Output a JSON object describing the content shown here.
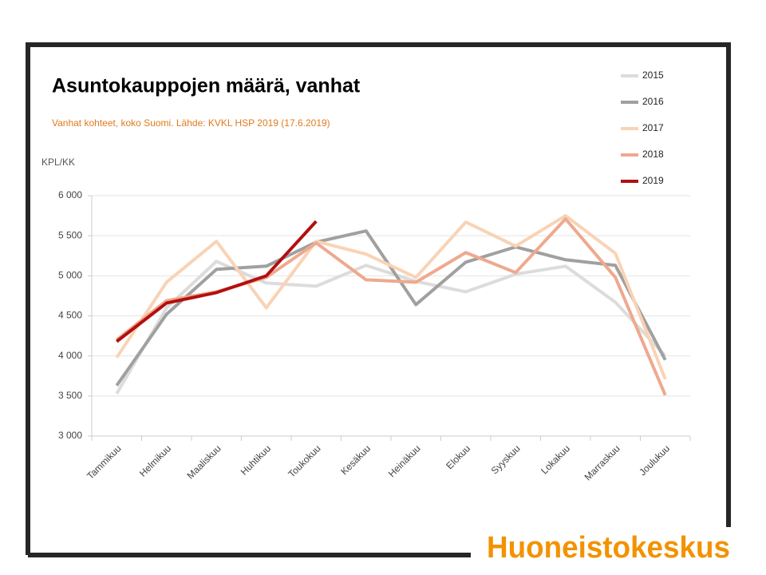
{
  "chart_data": {
    "type": "line",
    "title": "Asuntokauppojen määrä, vanhat",
    "subtitle": "Vanhat kohteet, koko Suomi. Lähde: KVKL HSP 2019 (17.6.2019)",
    "ylabel": "KPL/KK",
    "categories": [
      "Tammikuu",
      "Helmikuu",
      "Maaliskuu",
      "Huhtikuu",
      "Toukokuu",
      "Kesäkuu",
      "Heinäkuu",
      "Elokuu",
      "Syyskuu",
      "Lokakuu",
      "Marraskuu",
      "Joulukuu"
    ],
    "series": [
      {
        "name": "2015",
        "color": "#dcdcdc",
        "values": [
          3530,
          4600,
          5180,
          4910,
          4870,
          5130,
          4930,
          4800,
          5020,
          5120,
          4670,
          4000
        ]
      },
      {
        "name": "2016",
        "color": "#a0a0a0",
        "values": [
          3630,
          4520,
          5080,
          5120,
          5420,
          5560,
          4640,
          5170,
          5360,
          5200,
          5130,
          3950
        ]
      },
      {
        "name": "2017",
        "color": "#f9d3b5",
        "values": [
          3980,
          4920,
          5430,
          4600,
          5430,
          5270,
          4980,
          5670,
          5370,
          5750,
          5280,
          3710
        ]
      },
      {
        "name": "2018",
        "color": "#eea98f",
        "values": [
          4200,
          4690,
          4800,
          4980,
          5410,
          4950,
          4920,
          5290,
          5040,
          5710,
          4980,
          3510
        ]
      },
      {
        "name": "2019",
        "color": "#b30f0f",
        "values": [
          4180,
          4660,
          4790,
          5000,
          5680,
          null,
          null,
          null,
          null,
          null,
          null,
          null
        ]
      }
    ],
    "ylim": [
      3000,
      6000
    ],
    "yticks": [
      {
        "value": 3000,
        "label": "3 000"
      },
      {
        "value": 3500,
        "label": "3 500"
      },
      {
        "value": 4000,
        "label": "4 000"
      },
      {
        "value": 4500,
        "label": "4 500"
      },
      {
        "value": 5000,
        "label": "5 000"
      },
      {
        "value": 5500,
        "label": "5 500"
      },
      {
        "value": 6000,
        "label": "6 000"
      }
    ],
    "grid": true,
    "legend": "top-right"
  },
  "logo": "Huoneistokeskus"
}
